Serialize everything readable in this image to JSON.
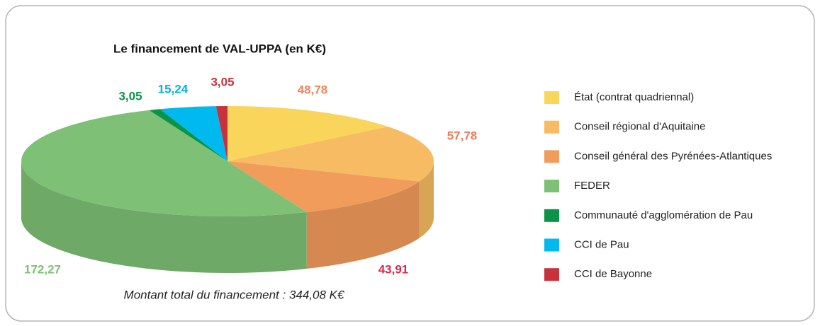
{
  "chart_data": {
    "type": "pie3d",
    "title": "Le financement de VAL-UPPA (en K€)",
    "annotation": "Montant total du financement : 344,08 K€",
    "categories": [
      "État (contrat quadriennal)",
      "Conseil régional d'Aquitaine",
      "Conseil général des Pyrénées-Atlantiques",
      "FEDER",
      "Communauté d'agglomération de Pau",
      "CCI de Pau",
      "CCI de Bayonne"
    ],
    "values": [
      48.78,
      57.78,
      43.91,
      172.27,
      3.05,
      15.24,
      3.05
    ],
    "value_labels": [
      "48,78",
      "57,78",
      "43,91",
      "172,27",
      "3,05",
      "15,24",
      "3,05"
    ],
    "colors": [
      "#f9d55b",
      "#f6bb63",
      "#f29c5c",
      "#7ec075",
      "#0a9448",
      "#00b9ef",
      "#c8323c"
    ],
    "value_label_colors": [
      "#f0835b",
      "#ee7a5a",
      "#e0264a",
      "#7ec075",
      "#0a9448",
      "#00b0e8",
      "#c8323c"
    ]
  }
}
